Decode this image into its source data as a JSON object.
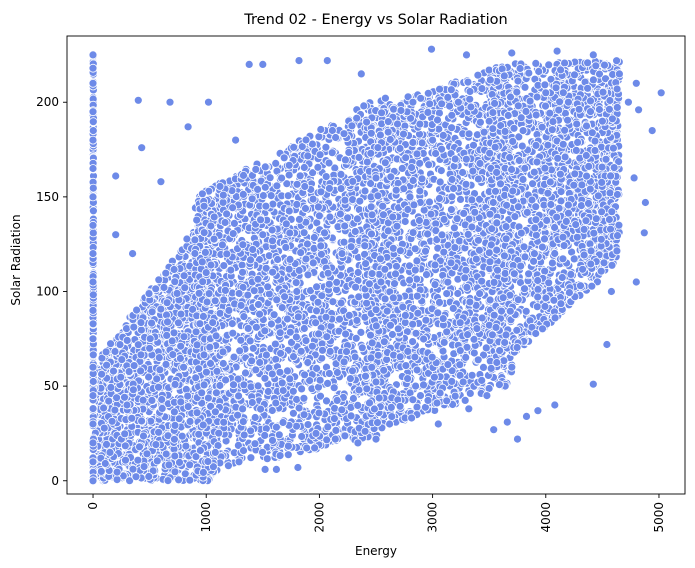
{
  "chart_data": {
    "type": "scatter",
    "title": "Trend 02 - Energy vs Solar Radiation",
    "xlabel": "Energy",
    "ylabel": "Solar Radiation",
    "xlim": [
      -230,
      5230
    ],
    "ylim": [
      -7,
      235
    ],
    "x_ticks": [
      0,
      1000,
      2000,
      3000,
      4000,
      5000
    ],
    "y_ticks": [
      0,
      50,
      100,
      150,
      200
    ],
    "x_tick_rotation": 90,
    "grid": false,
    "legend": "none",
    "marker_color": "#6d8ae8",
    "marker_edge": "#ffffff",
    "points": [
      [
        0,
        0
      ],
      [
        0,
        10
      ],
      [
        0,
        20
      ],
      [
        0,
        30
      ],
      [
        0,
        45
      ],
      [
        0,
        60
      ],
      [
        0,
        75
      ],
      [
        0,
        90
      ],
      [
        0,
        105
      ],
      [
        0,
        120
      ],
      [
        0,
        135
      ],
      [
        0,
        150
      ],
      [
        0,
        165
      ],
      [
        0,
        180
      ],
      [
        0,
        195
      ],
      [
        0,
        210
      ],
      [
        0,
        218
      ],
      [
        0,
        225
      ],
      [
        150,
        15
      ],
      [
        300,
        40
      ],
      [
        500,
        70
      ],
      [
        800,
        60
      ],
      [
        1000,
        110
      ],
      [
        1200,
        90
      ],
      [
        1500,
        130
      ],
      [
        1800,
        100
      ],
      [
        2000,
        140
      ],
      [
        2200,
        120
      ],
      [
        2500,
        160
      ],
      [
        2800,
        150
      ],
      [
        3000,
        180
      ],
      [
        3200,
        170
      ],
      [
        3500,
        190
      ],
      [
        3800,
        185
      ],
      [
        4000,
        205
      ],
      [
        4200,
        200
      ],
      [
        4500,
        190
      ],
      [
        4800,
        210
      ],
      [
        400,
        201
      ],
      [
        680,
        200
      ],
      [
        840,
        187
      ],
      [
        1020,
        200
      ],
      [
        1260,
        180
      ],
      [
        1380,
        220
      ],
      [
        1500,
        220
      ],
      [
        1820,
        222
      ],
      [
        2070,
        222
      ],
      [
        2370,
        215
      ],
      [
        2990,
        228
      ],
      [
        3300,
        225
      ],
      [
        3700,
        226
      ],
      [
        4100,
        227
      ],
      [
        5020,
        205
      ],
      [
        4940,
        185
      ],
      [
        4880,
        147
      ],
      [
        4870,
        131
      ],
      [
        4800,
        105
      ],
      [
        4780,
        160
      ],
      [
        4580,
        100
      ],
      [
        4540,
        72
      ],
      [
        4420,
        51
      ],
      [
        4080,
        40
      ],
      [
        3930,
        37
      ],
      [
        3750,
        22
      ],
      [
        3660,
        31
      ],
      [
        3540,
        27
      ],
      [
        3830,
        34
      ],
      [
        3480,
        45
      ],
      [
        3320,
        38
      ],
      [
        3050,
        30
      ],
      [
        2850,
        50
      ],
      [
        2620,
        30
      ],
      [
        2500,
        22
      ],
      [
        2340,
        20
      ],
      [
        2260,
        12
      ],
      [
        2140,
        22
      ],
      [
        1970,
        25
      ],
      [
        1810,
        7
      ],
      [
        1620,
        6
      ],
      [
        1520,
        6
      ],
      [
        1290,
        10
      ],
      [
        1080,
        15
      ],
      [
        4420,
        225
      ],
      [
        4630,
        207
      ],
      [
        4650,
        215
      ],
      [
        4730,
        200
      ],
      [
        4820,
        196
      ],
      [
        200,
        161
      ],
      [
        430,
        176
      ],
      [
        600,
        158
      ],
      [
        350,
        120
      ],
      [
        200,
        130
      ]
    ],
    "clouds": [
      {
        "from_x": 0,
        "to_x": 1100,
        "y_low_start": 0,
        "y_low_end": 0,
        "y_high_start": 60,
        "y_high_end": 150,
        "count": 1800
      },
      {
        "from_x": 900,
        "to_x": 2600,
        "y_low_start": 3,
        "y_low_end": 25,
        "y_high_start": 150,
        "y_high_end": 205,
        "count": 2400
      },
      {
        "from_x": 2400,
        "to_x": 3700,
        "y_low_start": 25,
        "y_low_end": 50,
        "y_high_start": 195,
        "y_high_end": 222,
        "count": 2000
      },
      {
        "from_x": 3500,
        "to_x": 4650,
        "y_low_start": 55,
        "y_low_end": 115,
        "y_high_start": 220,
        "y_high_end": 222,
        "count": 1700
      }
    ]
  }
}
